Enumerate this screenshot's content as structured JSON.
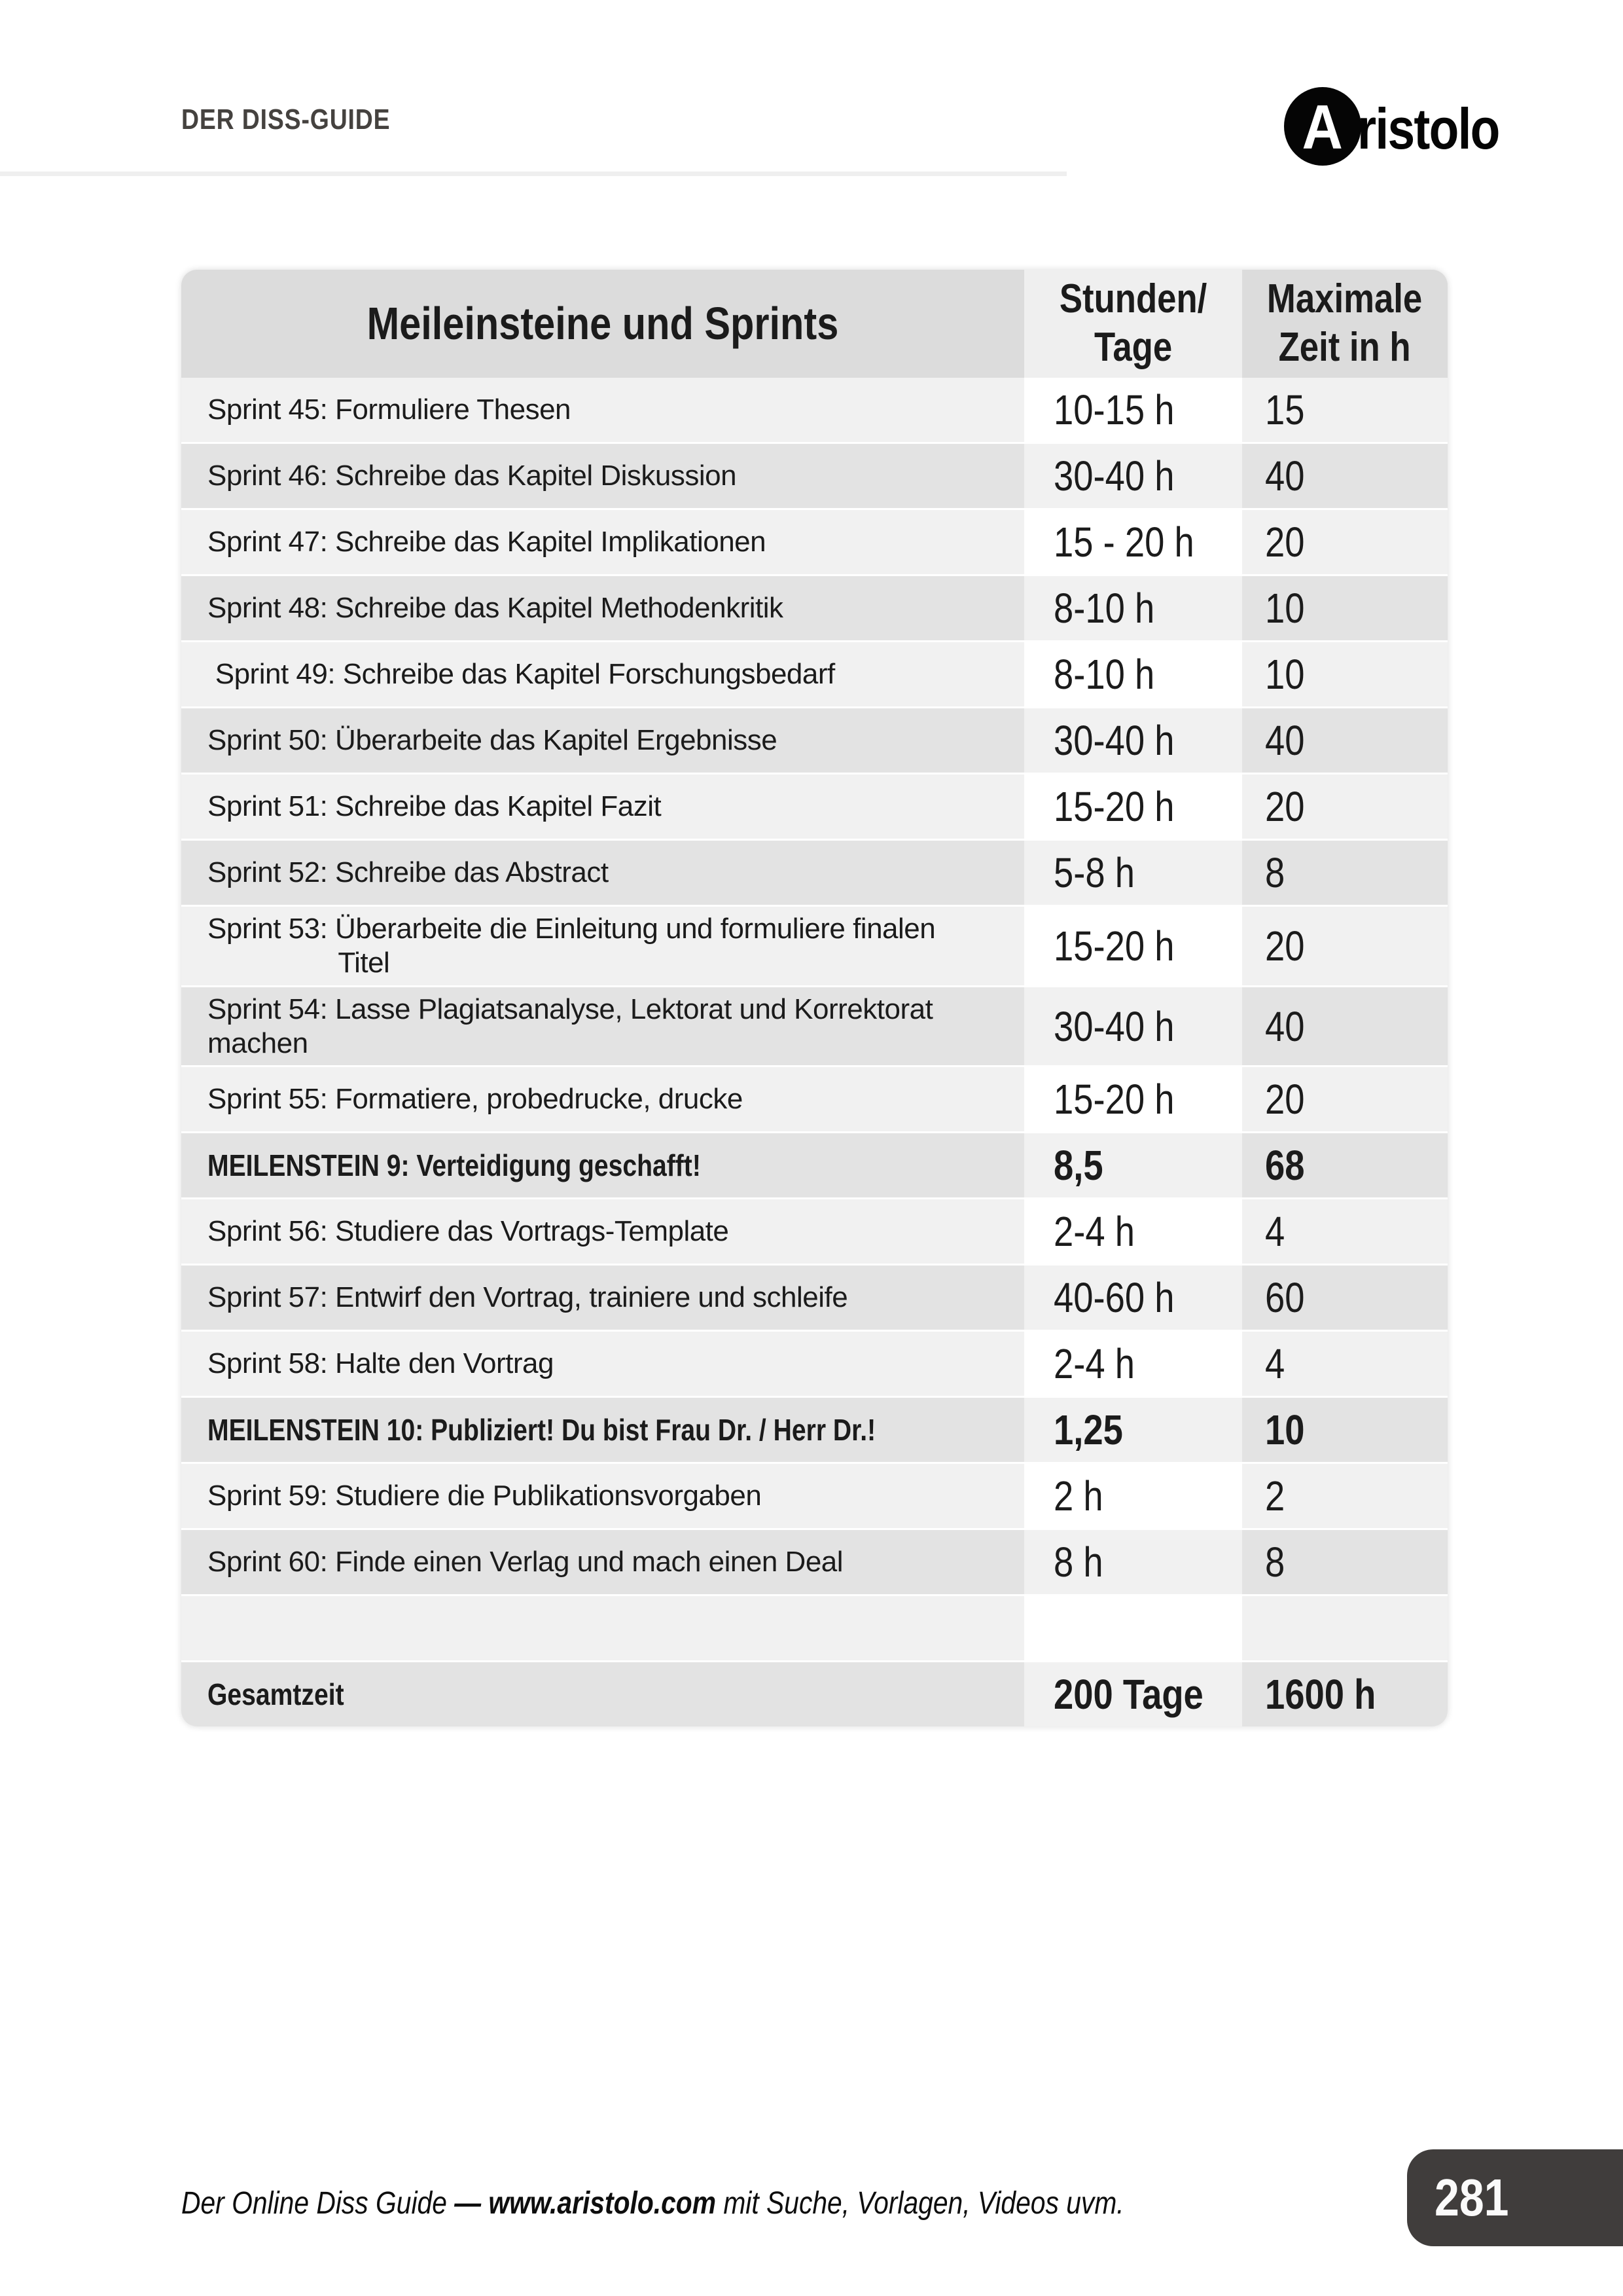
{
  "header": {
    "doc_label": "DER DISS-GUIDE"
  },
  "logo": {
    "initial": "A",
    "text": "ristolo"
  },
  "table": {
    "title": "Meileinsteine und Sprints",
    "col2_header": "Stunden/\nTage",
    "col3_header": "Maximale\nZeit in h",
    "rows": [
      {
        "label": "Sprint 45: Formuliere Thesen",
        "hours": "10-15 h",
        "max": "15",
        "bold": false
      },
      {
        "label": "Sprint 46: Schreibe das Kapitel Diskussion",
        "hours": "30-40 h",
        "max": "40",
        "bold": false
      },
      {
        "label": "Sprint 47: Schreibe das Kapitel Implikationen",
        "hours": "15 - 20 h",
        "max": "20",
        "bold": false
      },
      {
        "label": "Sprint 48: Schreibe das Kapitel Methodenkritik",
        "hours": "8-10 h",
        "max": "10",
        "bold": false
      },
      {
        "label": " Sprint 49: Schreibe das Kapitel Forschungsbedarf",
        "hours": "8-10 h",
        "max": "10",
        "bold": false
      },
      {
        "label": "Sprint 50: Überarbeite das Kapitel Ergebnisse",
        "hours": "30-40 h",
        "max": "40",
        "bold": false
      },
      {
        "label": "Sprint 51: Schreibe das Kapitel Fazit",
        "hours": "15-20 h",
        "max": "20",
        "bold": false
      },
      {
        "label": "Sprint 52: Schreibe das Abstract",
        "hours": "5-8 h",
        "max": "8",
        "bold": false
      },
      {
        "label": "Sprint 53: Überarbeite die Einleitung und formuliere finalen\n                 Titel",
        "hours": "15-20 h",
        "max": "20",
        "bold": false
      },
      {
        "label": "Sprint 54: Lasse Plagiatsanalyse, Lektorat und Korrektorat\nmachen",
        "hours": "30-40 h",
        "max": "40",
        "bold": false
      },
      {
        "label": "Sprint 55: Formatiere, probedrucke, drucke",
        "hours": "15-20 h",
        "max": "20",
        "bold": false
      },
      {
        "label": "MEILENSTEIN 9: Verteidigung geschafft!",
        "hours": "8,5",
        "max": "68",
        "bold": true
      },
      {
        "label": "Sprint 56: Studiere das Vortrags-Template",
        "hours": "2-4 h",
        "max": "4",
        "bold": false
      },
      {
        "label": "Sprint 57: Entwirf den Vortrag, trainiere und schleife",
        "hours": "40-60 h",
        "max": "60",
        "bold": false
      },
      {
        "label": "Sprint 58: Halte den Vortrag",
        "hours": "2-4 h",
        "max": "4",
        "bold": false
      },
      {
        "label": "MEILENSTEIN 10: Publiziert! Du bist Frau Dr. / Herr Dr.!",
        "hours": "1,25",
        "max": "10",
        "bold": true
      },
      {
        "label": "Sprint 59: Studiere die Publikationsvorgaben",
        "hours": "2 h",
        "max": "2",
        "bold": false
      },
      {
        "label": "Sprint 60: Finde einen Verlag und mach einen Deal",
        "hours": "8 h",
        "max": "8",
        "bold": false
      },
      {
        "label": "",
        "hours": "",
        "max": "",
        "bold": false
      },
      {
        "label": "Gesamtzeit",
        "hours": "200 Tage",
        "max": "1600 h",
        "bold": true
      }
    ]
  },
  "footer": {
    "text_part1": "Der Online Diss Guide ",
    "text_bold": "— www.aristolo.com",
    "text_part2": " mit Suche, Vorlagen, Videos uvm.",
    "page_number": "281"
  },
  "colors": {
    "header_row_bg": "#dcdcdc",
    "header_mid_col_bg": "#efefef",
    "light_row_bg": "#f1f1f1",
    "light_row_mid_col_bg": "#ffffff",
    "dark_row_bg": "#e3e3e3",
    "dark_row_mid_col_bg": "#f1f1f1",
    "badge_bg": "#403d3c",
    "logo_circle_bg": "#050505",
    "text": "#1b1b1b"
  }
}
